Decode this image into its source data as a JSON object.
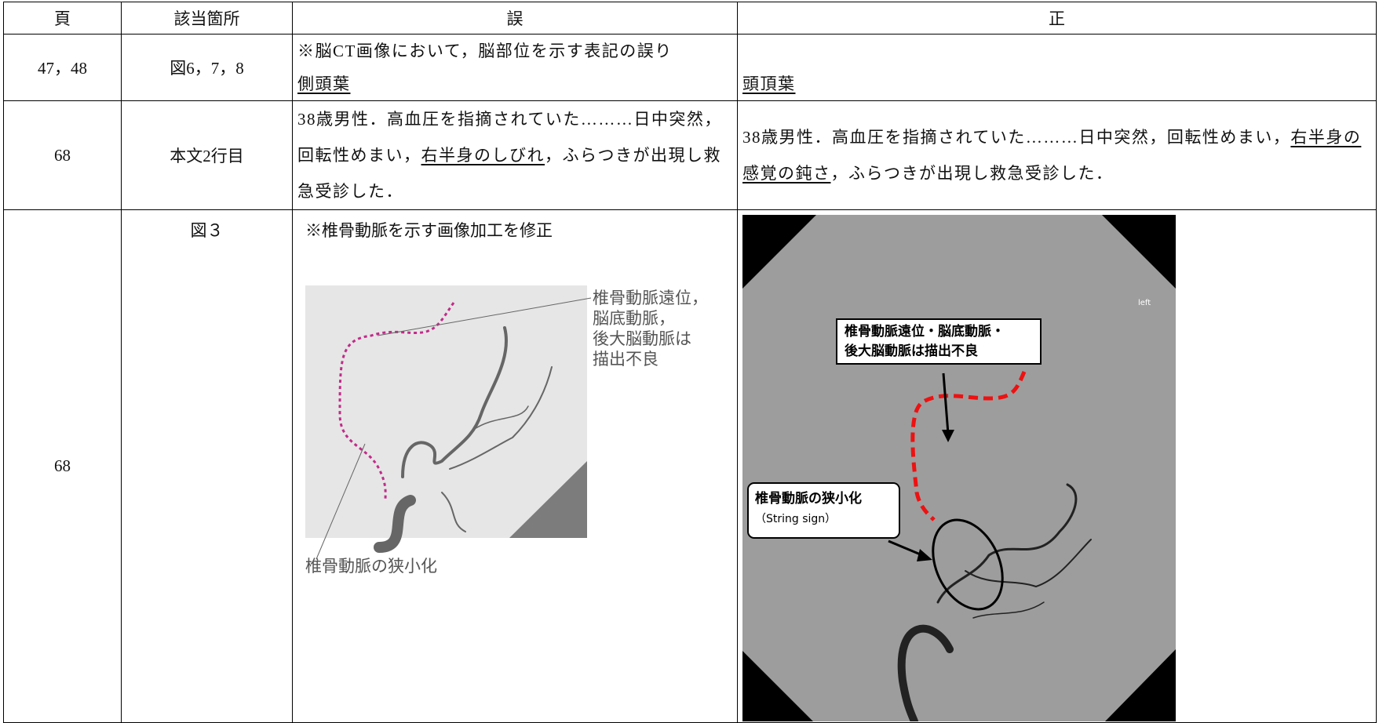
{
  "table": {
    "header": [
      "頁",
      "該当箇所",
      "誤",
      "正"
    ],
    "rows": [
      {
        "page": "47，48",
        "location": "図6，7，8",
        "wrong": {
          "note": "※脳CT画像において，脳部位を示す表記の誤り",
          "underlined": "側頭葉"
        },
        "correct": {
          "underlined": "頭頂葉"
        }
      },
      {
        "page": "68",
        "location": "本文2行目",
        "wrong": {
          "before": "38歳男性．高血圧を指摘されていた………日中突然，回転性めまい，",
          "underlined": "右半身のしびれ",
          "after": "，ふらつきが出現し救急受診した．"
        },
        "correct": {
          "before": "38歳男性．高血圧を指摘されていた………日中突然，回転性めまい，",
          "underlined": "右半身の感覚の鈍さ",
          "after": "，ふらつきが出現し救急受診した．"
        }
      },
      {
        "page": "68",
        "location": "図３",
        "wrong": {
          "note": "※椎骨動脈を示す画像加工を修正",
          "distal_label": [
            "椎骨動脈遠位，",
            "脳底動脈，",
            "後大脳動脈は",
            "描出不良"
          ],
          "stenosis_label": "椎骨動脈の狭小化"
        },
        "correct": {
          "side_label": "left",
          "distal_label": [
            "椎骨動脈遠位・脳底動脈・",
            "後大脳動脈は描出不良"
          ],
          "stenosis_label": [
            "椎骨動脈の狭小化",
            "（String sign）"
          ]
        }
      }
    ]
  }
}
